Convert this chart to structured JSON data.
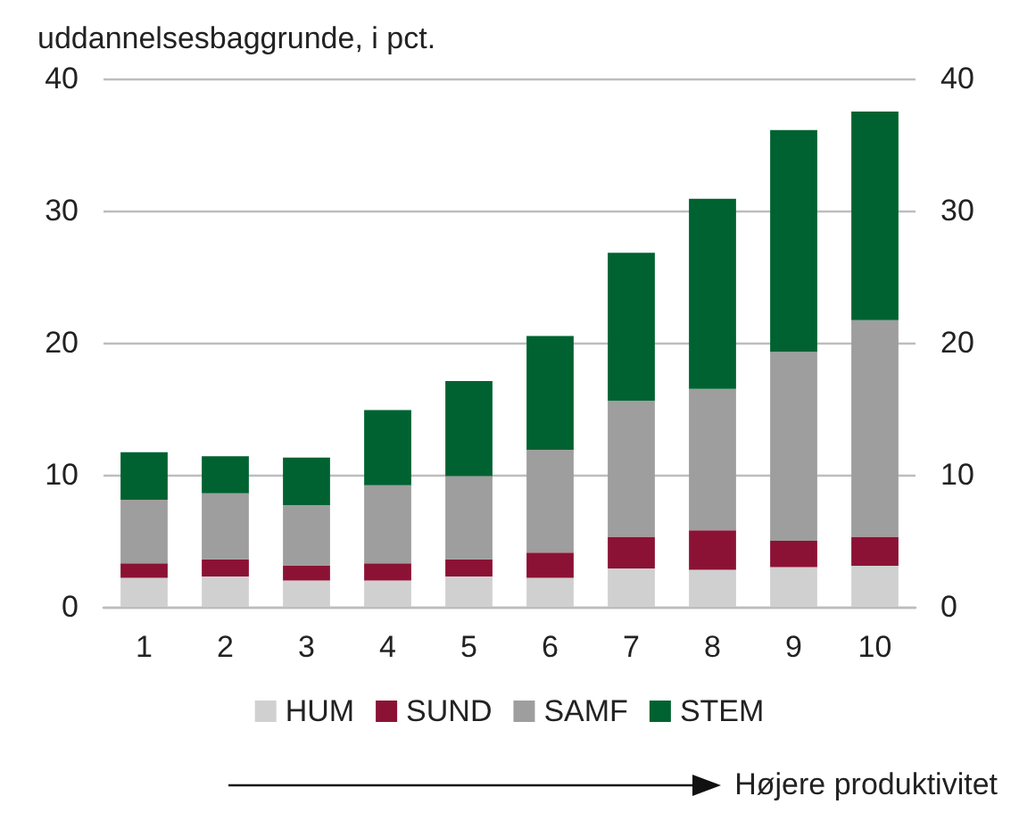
{
  "chart_data": {
    "type": "bar",
    "title": "uddannelsesbaggrunde, i pct.",
    "categories": [
      "1",
      "2",
      "3",
      "4",
      "5",
      "6",
      "7",
      "8",
      "9",
      "10"
    ],
    "series": [
      {
        "name": "HUM",
        "color": "#d0d0d0",
        "values": [
          2.2,
          2.3,
          2.0,
          2.0,
          2.3,
          2.2,
          2.9,
          2.8,
          3.0,
          3.1
        ]
      },
      {
        "name": "SUND",
        "color": "#8b1234",
        "values": [
          1.1,
          1.3,
          1.1,
          1.3,
          1.3,
          1.9,
          2.4,
          3.0,
          2.0,
          2.2
        ]
      },
      {
        "name": "SAMF",
        "color": "#9e9e9e",
        "values": [
          4.8,
          5.0,
          4.6,
          5.9,
          6.3,
          7.8,
          10.3,
          10.7,
          14.3,
          16.4
        ]
      },
      {
        "name": "STEM",
        "color": "#006231",
        "values": [
          3.6,
          2.8,
          3.6,
          5.7,
          7.2,
          8.6,
          11.2,
          14.4,
          16.8,
          15.8
        ]
      }
    ],
    "stacked": true,
    "ylim": [
      0,
      40
    ],
    "yticks": [
      0,
      10,
      20,
      30,
      40
    ],
    "y2lim": [
      0,
      40
    ],
    "y2ticks": [
      0,
      10,
      20,
      30,
      40
    ],
    "grid": "y",
    "legend": "bottom",
    "annotations": [
      "Højere produktivitet"
    ]
  }
}
